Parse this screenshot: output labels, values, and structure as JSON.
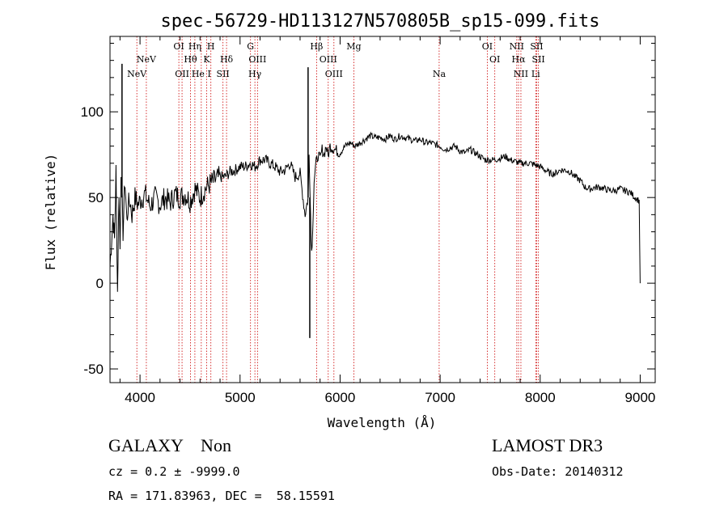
{
  "chart_data": {
    "type": "line",
    "title": "spec-56729-HD113127N570805B_sp15-099.fits",
    "xlabel": "Wavelength (Å)",
    "ylabel": "Flux (relative)",
    "xlim": [
      3700,
      9150
    ],
    "ylim": [
      -58,
      144
    ],
    "xticks": [
      4000,
      5000,
      6000,
      7000,
      8000,
      9000
    ],
    "yticks": [
      -50,
      0,
      50,
      100
    ],
    "grid": false,
    "series": [
      {
        "name": "flux",
        "x": [
          3700,
          3730,
          3745,
          3760,
          3775,
          3790,
          3800,
          3810,
          3830,
          3850,
          3870,
          3880,
          3900,
          3920,
          3950,
          3980,
          4000,
          4050,
          4100,
          4150,
          4200,
          4250,
          4300,
          4350,
          4400,
          4450,
          4500,
          4550,
          4600,
          4650,
          4700,
          4750,
          4800,
          4850,
          4900,
          4950,
          5000,
          5050,
          5100,
          5150,
          5200,
          5250,
          5300,
          5350,
          5400,
          5450,
          5500,
          5550,
          5600,
          5650,
          5680,
          5690,
          5700,
          5710,
          5720,
          5740,
          5760,
          5780,
          5800,
          5820,
          5840,
          5860,
          5880,
          5900,
          5950,
          6000,
          6050,
          6100,
          6150,
          6200,
          6250,
          6300,
          6350,
          6400,
          6450,
          6500,
          6550,
          6600,
          6650,
          6700,
          6750,
          6800,
          6850,
          6900,
          6950,
          7000,
          7050,
          7100,
          7150,
          7200,
          7250,
          7300,
          7350,
          7400,
          7450,
          7500,
          7550,
          7600,
          7650,
          7700,
          7750,
          7800,
          7850,
          7900,
          7950,
          8000,
          8050,
          8100,
          8150,
          8200,
          8250,
          8300,
          8350,
          8400,
          8450,
          8500,
          8550,
          8600,
          8650,
          8700,
          8750,
          8800,
          8850,
          8900,
          8950,
          8990,
          9000
        ],
        "y": [
          10,
          40,
          25,
          65,
          -5,
          55,
          20,
          68,
          30,
          60,
          35,
          45,
          48,
          40,
          50,
          46,
          48,
          52,
          45,
          50,
          46,
          50,
          47,
          52,
          50,
          52,
          48,
          55,
          50,
          55,
          58,
          60,
          62,
          62,
          65,
          66,
          68,
          68,
          70,
          68,
          72,
          72,
          70,
          68,
          65,
          66,
          70,
          62,
          64,
          40,
          50,
          75,
          55,
          25,
          20,
          60,
          70,
          75,
          72,
          78,
          75,
          80,
          74,
          80,
          78,
          76,
          80,
          82,
          80,
          82,
          84,
          86,
          85,
          85,
          84,
          86,
          84,
          86,
          85,
          84,
          83,
          84,
          82,
          82,
          81,
          80,
          78,
          79,
          80,
          77,
          76,
          78,
          76,
          74,
          72,
          72,
          72,
          73,
          74,
          72,
          71,
          70,
          70,
          70,
          69,
          68,
          66,
          64,
          64,
          66,
          66,
          65,
          62,
          60,
          56,
          55,
          56,
          56,
          55,
          54,
          54,
          55,
          54,
          53,
          50,
          48,
          0
        ]
      }
    ],
    "spikes": [
      {
        "x": 3820,
        "y": 128
      },
      {
        "x": 5680,
        "y": 126
      },
      {
        "x": 5697,
        "y": -32
      }
    ],
    "emission_lines": [
      {
        "label": "NeV",
        "wl": 3346,
        "row": 3
      },
      {
        "label": "NeV",
        "wl": 3426,
        "row": 2
      },
      {
        "label": "OII",
        "wl": 3727,
        "row": 3
      },
      {
        "label": "Hη",
        "wl": 3835,
        "row": 1
      },
      {
        "label": "Hθ",
        "wl": 3798,
        "row": 2
      },
      {
        "label": "H",
        "wl": 3970,
        "row": 1
      },
      {
        "label": "K",
        "wl": 3934,
        "row": 2
      },
      {
        "label": "He I",
        "wl": 3889,
        "row": 3
      },
      {
        "label": "OI",
        "wl": 3700,
        "row": 1
      },
      {
        "label": "Hδ",
        "wl": 4102,
        "row": 2
      },
      {
        "label": "SII",
        "wl": 4072,
        "row": 3
      },
      {
        "label": "G",
        "wl": 4304,
        "row": 1
      },
      {
        "label": "OIII",
        "wl": 4363,
        "row": 2
      },
      {
        "label": "Hγ",
        "wl": 4341,
        "row": 3
      },
      {
        "label": "Hβ",
        "wl": 4861,
        "row": 1
      },
      {
        "label": "OIII",
        "wl": 4959,
        "row": 2
      },
      {
        "label": "OIII",
        "wl": 5007,
        "row": 3
      },
      {
        "label": "Mg",
        "wl": 5175,
        "row": 1
      },
      {
        "label": "Na",
        "wl": 5894,
        "row": 3
      },
      {
        "label": "OI",
        "wl": 6300,
        "row": 1
      },
      {
        "label": "OI",
        "wl": 6363,
        "row": 2
      },
      {
        "label": "NII",
        "wl": 6548,
        "row": 1
      },
      {
        "label": "Hα",
        "wl": 6563,
        "row": 2
      },
      {
        "label": "NII",
        "wl": 6583,
        "row": 3
      },
      {
        "label": "SII",
        "wl": 6716,
        "row": 1
      },
      {
        "label": "SII",
        "wl": 6731,
        "row": 2
      },
      {
        "label": "Li",
        "wl": 6708,
        "row": 3
      }
    ],
    "redshift_note": "lines plotted at rest wavelength x 1.186"
  },
  "info": {
    "class_text": "GALAXY    Non",
    "cz_text": "cz = 0.2 ± -9999.0",
    "radec_text": "RA = 171.83963, DEC =  58.15591",
    "survey_text": "LAMOST DR3",
    "obsdate_text": "Obs-Date: 20140312"
  },
  "colors": {
    "line_color": "#000000",
    "marker_color": "#cc0000",
    "axis_color": "#000000"
  }
}
